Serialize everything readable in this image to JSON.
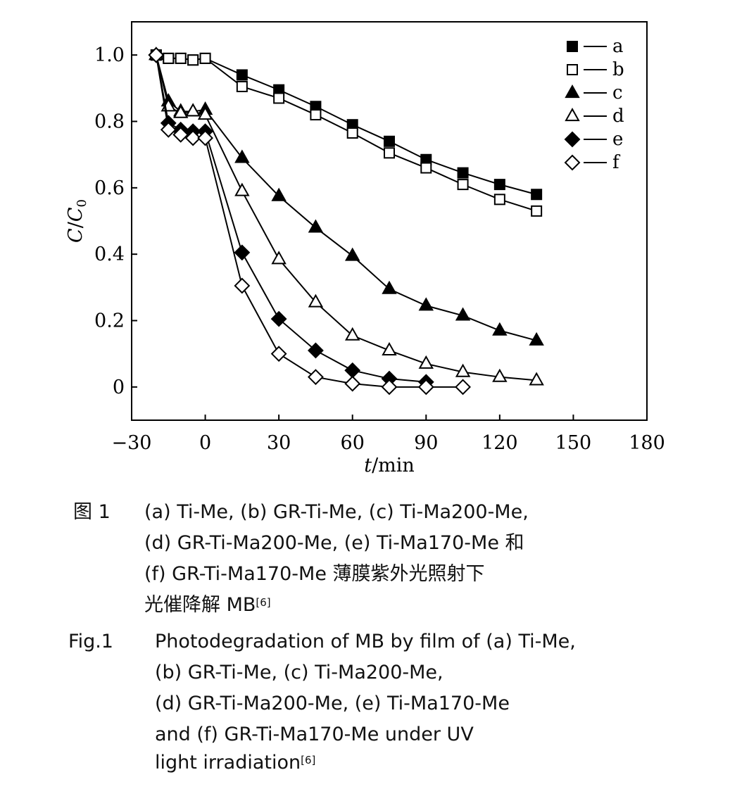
{
  "chart_data": {
    "type": "line",
    "xlabel_var": "t",
    "xlabel_unit": "/min",
    "ylabel_var1": "C",
    "ylabel_sep": "/",
    "ylabel_var2": "C",
    "ylabel_sub": "0",
    "xlim": [
      -30,
      180
    ],
    "ylim": [
      -0.1,
      1.1
    ],
    "xticks": [
      -30,
      0,
      30,
      60,
      90,
      120,
      150,
      180
    ],
    "xtick_labels": [
      "−30",
      "0",
      "30",
      "60",
      "90",
      "120",
      "150",
      "180"
    ],
    "yticks": [
      0,
      0.2,
      0.4,
      0.6,
      0.8,
      1.0
    ],
    "ytick_labels": [
      "0",
      "0.2",
      "0.4",
      "0.6",
      "0.8",
      "1.0"
    ],
    "grid": false,
    "legend_position": "top-right",
    "series": [
      {
        "name": "a",
        "marker": "square",
        "filled": true,
        "x": [
          -20,
          -15,
          -10,
          -5,
          0,
          15,
          30,
          45,
          60,
          75,
          90,
          105,
          120,
          135
        ],
        "y": [
          1.0,
          0.99,
          0.99,
          0.985,
          0.99,
          0.94,
          0.895,
          0.845,
          0.79,
          0.74,
          0.685,
          0.645,
          0.61,
          0.58
        ]
      },
      {
        "name": "b",
        "marker": "square",
        "filled": false,
        "x": [
          -20,
          -15,
          -10,
          -5,
          0,
          15,
          30,
          45,
          60,
          75,
          90,
          105,
          120,
          135
        ],
        "y": [
          1.0,
          0.99,
          0.99,
          0.985,
          0.99,
          0.905,
          0.87,
          0.82,
          0.765,
          0.705,
          0.66,
          0.61,
          0.565,
          0.53
        ]
      },
      {
        "name": "c",
        "marker": "triangle",
        "filled": true,
        "x": [
          -20,
          -15,
          -10,
          -5,
          0,
          15,
          30,
          45,
          60,
          75,
          90,
          105,
          120,
          135
        ],
        "y": [
          1.0,
          0.86,
          0.83,
          0.83,
          0.835,
          0.69,
          0.575,
          0.48,
          0.395,
          0.295,
          0.245,
          0.215,
          0.17,
          0.14
        ]
      },
      {
        "name": "d",
        "marker": "triangle",
        "filled": false,
        "x": [
          -20,
          -15,
          -10,
          -5,
          0,
          15,
          30,
          45,
          60,
          75,
          90,
          105,
          120,
          135
        ],
        "y": [
          1.0,
          0.845,
          0.825,
          0.83,
          0.82,
          0.59,
          0.385,
          0.255,
          0.155,
          0.11,
          0.07,
          0.045,
          0.03,
          0.02
        ]
      },
      {
        "name": "e",
        "marker": "diamond",
        "filled": true,
        "x": [
          -20,
          -15,
          -10,
          -5,
          0,
          15,
          30,
          45,
          60,
          75,
          90
        ],
        "y": [
          1.0,
          0.795,
          0.775,
          0.77,
          0.77,
          0.405,
          0.205,
          0.11,
          0.05,
          0.025,
          0.015
        ]
      },
      {
        "name": "f",
        "marker": "diamond",
        "filled": false,
        "x": [
          -20,
          -15,
          -10,
          -5,
          0,
          15,
          30,
          45,
          60,
          75,
          90,
          105
        ],
        "y": [
          1.0,
          0.775,
          0.76,
          0.75,
          0.75,
          0.305,
          0.1,
          0.03,
          0.01,
          0.0,
          0.0,
          0.0
        ]
      }
    ]
  },
  "caption": {
    "cn_label": "图 1",
    "cn_lines": [
      "(a) Ti-Me, (b) GR-Ti-Me, (c) Ti-Ma200-Me,",
      "(d) GR-Ti-Ma200-Me, (e) Ti-Ma170-Me 和",
      "(f) GR-Ti-Ma170-Me 薄膜紫外光照射下",
      "光催降解 MB"
    ],
    "cn_ref": "[6]",
    "en_label": "Fig.1",
    "en_lines": [
      "Photodegradation of MB by film of (a) Ti-Me,",
      "(b) GR-Ti-Me, (c) Ti-Ma200-Me,",
      "(d) GR-Ti-Ma200-Me, (e) Ti-Ma170-Me",
      "and (f) GR-Ti-Ma170-Me under UV",
      "light irradiation"
    ],
    "en_ref": "[6]"
  }
}
